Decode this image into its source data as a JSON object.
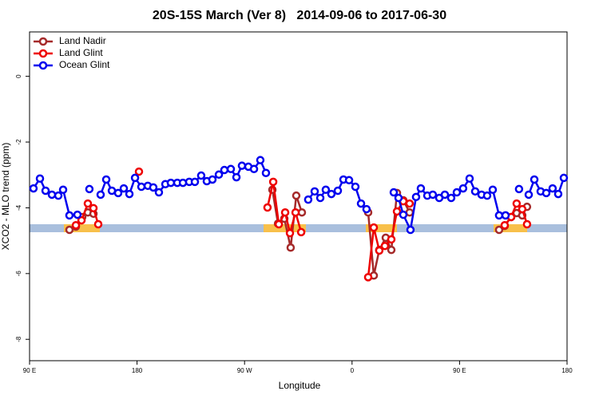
{
  "chart_data": {
    "type": "line",
    "title": "20S-15S March (Ver 8)   2014-09-06 to 2017-06-30",
    "x_label": "Longitude",
    "y_label": "XCO2 - MLO trend (ppm)",
    "xlim": [
      90,
      540
    ],
    "ylim": [
      -8.65,
      1.35
    ],
    "xticks": [
      {
        "value": 90,
        "label": "90 E"
      },
      180,
      {
        "value": 270,
        "label": "90 W"
      },
      {
        "value": 360,
        "label": "0"
      },
      {
        "value": 450,
        "label": "90 E"
      },
      {
        "value": 540,
        "label": "180"
      }
    ],
    "yticks": [
      0,
      -2,
      -4,
      -6,
      -8
    ],
    "legend": "top-left",
    "series": [
      {
        "name": "Land Nadir",
        "color": "#a52a2a",
        "x": [
          123.4,
          128.8,
          134.1,
          138.8,
          143.5,
          null,
          293.3,
          298.0,
          303.3,
          308.6,
          313.3,
          318.0,
          null,
          373.5,
          378.2,
          382.8,
          388.2,
          392.9,
          397.6,
          402.9,
          408.2,
          null,
          483.1,
          487.8,
          493.2,
          497.8,
          502.5,
          506.5
        ],
        "values": [
          -4.67,
          -4.57,
          -4.28,
          -4.14,
          -4.18,
          null,
          -3.45,
          -4.48,
          -4.33,
          -5.21,
          -3.63,
          -4.14,
          null,
          -4.14,
          -6.06,
          -5.28,
          -4.91,
          -5.28,
          -3.55,
          -3.77,
          -4.14,
          null,
          -4.67,
          -4.55,
          -4.28,
          -4.16,
          -4.23,
          -3.97
        ]
      },
      {
        "name": "Land Glint",
        "color": "#ee0000",
        "x": [
          128.8,
          133.5,
          138.8,
          143.5,
          147.5,
          null,
          181.6,
          null,
          289.2,
          294.0,
          298.7,
          304.0,
          308.0,
          312.7,
          317.4,
          null,
          373.5,
          378.2,
          382.8,
          387.5,
          392.9,
          397.6,
          402.9,
          408.2,
          null,
          487.8,
          493.2,
          497.8,
          502.5,
          506.5
        ],
        "values": [
          -4.53,
          -4.38,
          -3.87,
          -4.01,
          -4.5,
          null,
          -2.9,
          null,
          -3.99,
          -3.21,
          -4.5,
          -4.14,
          -4.77,
          -4.14,
          -4.74,
          null,
          -6.11,
          -4.6,
          -5.3,
          -5.16,
          -4.96,
          -4.11,
          -3.8,
          -3.87,
          null,
          -4.53,
          -4.28,
          -3.87,
          -4.04,
          -4.5
        ]
      },
      {
        "name": "Ocean Glint",
        "color": "#0000ee",
        "x": [
          93.3,
          98.7,
          103.4,
          108.7,
          114.1,
          118.1,
          123.4,
          130.1,
          null,
          140.1,
          null,
          149.5,
          154.2,
          158.9,
          164.2,
          168.9,
          173.6,
          178.3,
          183.6,
          189.0,
          193.6,
          198.3,
          203.7,
          208.3,
          213.7,
          218.4,
          223.7,
          228.4,
          233.7,
          238.4,
          243.1,
          248.5,
          253.1,
          258.5,
          263.2,
          267.8,
          273.2,
          277.9,
          283.2,
          287.9,
          null,
          323.3,
          328.7,
          333.4,
          338.0,
          342.7,
          348.1,
          352.8,
          357.5,
          362.8,
          367.5,
          372.1,
          null,
          394.9,
          398.9,
          402.9,
          408.9,
          413.6,
          417.6,
          423.0,
          427.6,
          433.0,
          437.7,
          443.0,
          447.7,
          453.0,
          458.4,
          463.1,
          468.4,
          473.1,
          477.8,
          483.1,
          488.5,
          null,
          499.8,
          null,
          507.9,
          512.6,
          517.9,
          522.6,
          527.9,
          532.6,
          537.3
        ],
        "values": [
          -3.41,
          -3.11,
          -3.48,
          -3.6,
          -3.63,
          -3.45,
          -4.23,
          -4.21,
          null,
          -3.43,
          null,
          -3.6,
          -3.14,
          -3.48,
          -3.55,
          -3.41,
          -3.58,
          -3.09,
          -3.36,
          -3.33,
          -3.38,
          -3.53,
          -3.28,
          -3.24,
          -3.24,
          -3.24,
          -3.21,
          -3.21,
          -3.02,
          -3.19,
          -3.14,
          -2.99,
          -2.85,
          -2.82,
          -3.07,
          -2.72,
          -2.75,
          -2.82,
          -2.55,
          -2.94,
          null,
          -3.75,
          -3.5,
          -3.7,
          -3.45,
          -3.58,
          -3.48,
          -3.14,
          -3.16,
          -3.36,
          -3.87,
          -4.04,
          null,
          -3.53,
          -3.7,
          -4.21,
          -4.67,
          -3.67,
          -3.41,
          -3.63,
          -3.6,
          -3.7,
          -3.6,
          -3.7,
          -3.53,
          -3.41,
          -3.11,
          -3.5,
          -3.6,
          -3.63,
          -3.45,
          -4.23,
          -4.23,
          null,
          -3.43,
          null,
          -3.6,
          -3.14,
          -3.5,
          -3.55,
          -3.41,
          -3.58,
          -3.09
        ]
      }
    ]
  }
}
